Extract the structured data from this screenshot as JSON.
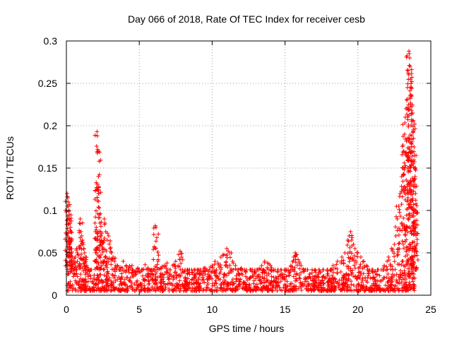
{
  "chart_data": {
    "type": "scatter",
    "title": "Day 066 of 2018, Rate Of TEC Index for receiver cesb",
    "xlabel": "GPS time / hours",
    "ylabel": "ROTI / TECUs",
    "xlim": [
      0,
      25
    ],
    "ylim": [
      0,
      0.3
    ],
    "x_ticks": [
      0,
      5,
      10,
      15,
      20,
      25
    ],
    "x_tick_labels": [
      "0",
      "5",
      "10",
      "15",
      "20",
      "25"
    ],
    "y_ticks": [
      0,
      0.05,
      0.1,
      0.15,
      0.2,
      0.25,
      0.3
    ],
    "y_tick_labels": [
      "0",
      "0.05",
      "0.1",
      "0.15",
      "0.2",
      "0.25",
      "0.3"
    ],
    "grid": true,
    "marker": "+",
    "color": "#ff0000",
    "series": [
      {
        "name": "ROTI",
        "points": [
          [
            0.05,
            0.12
          ],
          [
            0.1,
            0.115
          ],
          [
            0.12,
            0.11
          ],
          [
            0.15,
            0.105
          ],
          [
            0.18,
            0.1
          ],
          [
            0.2,
            0.095
          ],
          [
            0.22,
            0.09
          ],
          [
            0.25,
            0.085
          ],
          [
            0.28,
            0.08
          ],
          [
            0.3,
            0.075
          ],
          [
            0.08,
            0.07
          ],
          [
            0.15,
            0.065
          ],
          [
            0.2,
            0.06
          ],
          [
            0.25,
            0.055
          ],
          [
            0.35,
            0.05
          ],
          [
            0.4,
            0.045
          ],
          [
            0.45,
            0.04
          ],
          [
            0.1,
            0.035
          ],
          [
            0.5,
            0.03
          ],
          [
            0.6,
            0.045
          ],
          [
            0.7,
            0.055
          ],
          [
            0.75,
            0.05
          ],
          [
            0.8,
            0.048
          ],
          [
            0.9,
            0.085
          ],
          [
            0.95,
            0.09
          ],
          [
            1.0,
            0.075
          ],
          [
            1.05,
            0.07
          ],
          [
            1.1,
            0.065
          ],
          [
            1.15,
            0.06
          ],
          [
            1.2,
            0.055
          ],
          [
            1.25,
            0.05
          ],
          [
            1.3,
            0.045
          ],
          [
            1.4,
            0.035
          ],
          [
            1.5,
            0.03
          ],
          [
            1.6,
            0.028
          ],
          [
            2.0,
            0.075
          ],
          [
            2.05,
            0.08
          ],
          [
            2.1,
            0.193
          ],
          [
            2.12,
            0.188
          ],
          [
            2.15,
            0.172
          ],
          [
            2.18,
            0.17
          ],
          [
            2.2,
            0.14
          ],
          [
            2.22,
            0.128
          ],
          [
            2.25,
            0.103
          ],
          [
            2.28,
            0.095
          ],
          [
            2.3,
            0.085
          ],
          [
            2.35,
            0.075
          ],
          [
            2.4,
            0.065
          ],
          [
            2.45,
            0.06
          ],
          [
            2.5,
            0.055
          ],
          [
            2.6,
            0.09
          ],
          [
            2.65,
            0.085
          ],
          [
            2.7,
            0.075
          ],
          [
            2.8,
            0.065
          ],
          [
            2.9,
            0.07
          ],
          [
            3.0,
            0.055
          ],
          [
            3.1,
            0.05
          ],
          [
            3.2,
            0.045
          ],
          [
            3.3,
            0.04
          ],
          [
            3.5,
            0.035
          ],
          [
            3.7,
            0.03
          ],
          [
            3.9,
            0.04
          ],
          [
            4.1,
            0.035
          ],
          [
            4.3,
            0.03
          ],
          [
            4.5,
            0.035
          ],
          [
            4.7,
            0.028
          ],
          [
            4.9,
            0.032
          ],
          [
            5.2,
            0.03
          ],
          [
            5.4,
            0.036
          ],
          [
            5.6,
            0.032
          ],
          [
            5.8,
            0.028
          ],
          [
            6.0,
            0.03
          ],
          [
            6.1,
            0.082
          ],
          [
            6.15,
            0.08
          ],
          [
            6.2,
            0.068
          ],
          [
            6.3,
            0.042
          ],
          [
            6.5,
            0.032
          ],
          [
            6.7,
            0.035
          ],
          [
            6.9,
            0.038
          ],
          [
            7.1,
            0.03
          ],
          [
            7.3,
            0.035
          ],
          [
            7.5,
            0.04
          ],
          [
            7.7,
            0.048
          ],
          [
            7.8,
            0.052
          ],
          [
            7.9,
            0.045
          ],
          [
            8.1,
            0.028
          ],
          [
            8.3,
            0.025
          ],
          [
            8.6,
            0.03
          ],
          [
            8.9,
            0.025
          ],
          [
            9.2,
            0.028
          ],
          [
            9.5,
            0.032
          ],
          [
            9.8,
            0.03
          ],
          [
            10.0,
            0.035
          ],
          [
            10.2,
            0.04
          ],
          [
            10.4,
            0.038
          ],
          [
            10.6,
            0.045
          ],
          [
            10.8,
            0.048
          ],
          [
            11.0,
            0.055
          ],
          [
            11.1,
            0.052
          ],
          [
            11.2,
            0.05
          ],
          [
            11.4,
            0.04
          ],
          [
            11.6,
            0.035
          ],
          [
            11.8,
            0.03
          ],
          [
            12.0,
            0.032
          ],
          [
            12.3,
            0.028
          ],
          [
            12.6,
            0.03
          ],
          [
            12.9,
            0.025
          ],
          [
            13.2,
            0.03
          ],
          [
            13.4,
            0.035
          ],
          [
            13.6,
            0.04
          ],
          [
            13.8,
            0.038
          ],
          [
            14.0,
            0.035
          ],
          [
            14.2,
            0.03
          ],
          [
            14.5,
            0.028
          ],
          [
            14.8,
            0.025
          ],
          [
            15.1,
            0.03
          ],
          [
            15.4,
            0.035
          ],
          [
            15.6,
            0.045
          ],
          [
            15.7,
            0.05
          ],
          [
            15.8,
            0.048
          ],
          [
            15.9,
            0.042
          ],
          [
            16.1,
            0.035
          ],
          [
            16.4,
            0.03
          ],
          [
            16.7,
            0.025
          ],
          [
            17.0,
            0.022
          ],
          [
            17.3,
            0.025
          ],
          [
            17.6,
            0.022
          ],
          [
            17.9,
            0.025
          ],
          [
            18.1,
            0.03
          ],
          [
            18.3,
            0.035
          ],
          [
            18.6,
            0.04
          ],
          [
            18.9,
            0.045
          ],
          [
            19.1,
            0.05
          ],
          [
            19.3,
            0.065
          ],
          [
            19.4,
            0.07
          ],
          [
            19.5,
            0.075
          ],
          [
            19.6,
            0.068
          ],
          [
            19.7,
            0.06
          ],
          [
            19.8,
            0.055
          ],
          [
            20.0,
            0.05
          ],
          [
            20.2,
            0.045
          ],
          [
            20.4,
            0.04
          ],
          [
            20.6,
            0.035
          ],
          [
            20.8,
            0.03
          ],
          [
            21.0,
            0.028
          ],
          [
            21.3,
            0.025
          ],
          [
            21.6,
            0.03
          ],
          [
            21.8,
            0.035
          ],
          [
            22.0,
            0.04
          ],
          [
            22.1,
            0.045
          ],
          [
            22.3,
            0.055
          ],
          [
            22.5,
            0.06
          ],
          [
            22.6,
            0.07
          ],
          [
            22.7,
            0.09
          ],
          [
            22.8,
            0.105
          ],
          [
            22.9,
            0.12
          ],
          [
            23.0,
            0.14
          ],
          [
            23.1,
            0.15
          ],
          [
            23.15,
            0.17
          ],
          [
            23.2,
            0.19
          ],
          [
            23.25,
            0.21
          ],
          [
            23.3,
            0.22
          ],
          [
            23.35,
            0.23
          ],
          [
            23.4,
            0.245
          ],
          [
            23.45,
            0.265
          ],
          [
            23.5,
            0.288
          ],
          [
            23.52,
            0.285
          ],
          [
            23.55,
            0.28
          ],
          [
            23.58,
            0.27
          ],
          [
            23.6,
            0.255
          ],
          [
            23.65,
            0.245
          ],
          [
            23.7,
            0.235
          ],
          [
            23.72,
            0.225
          ],
          [
            23.75,
            0.215
          ],
          [
            23.78,
            0.205
          ],
          [
            23.8,
            0.195
          ],
          [
            23.82,
            0.185
          ],
          [
            23.85,
            0.175
          ],
          [
            23.88,
            0.165
          ],
          [
            23.9,
            0.15
          ],
          [
            23.92,
            0.14
          ],
          [
            23.95,
            0.12
          ],
          [
            23.97,
            0.1
          ],
          [
            24.0,
            0.083
          ],
          [
            23.85,
            0.063
          ],
          [
            23.7,
            0.045
          ],
          [
            23.8,
            0.03
          ],
          [
            23.9,
            0.02
          ]
        ],
        "baseline_band": [
          0.005,
          0.03
        ]
      }
    ]
  }
}
